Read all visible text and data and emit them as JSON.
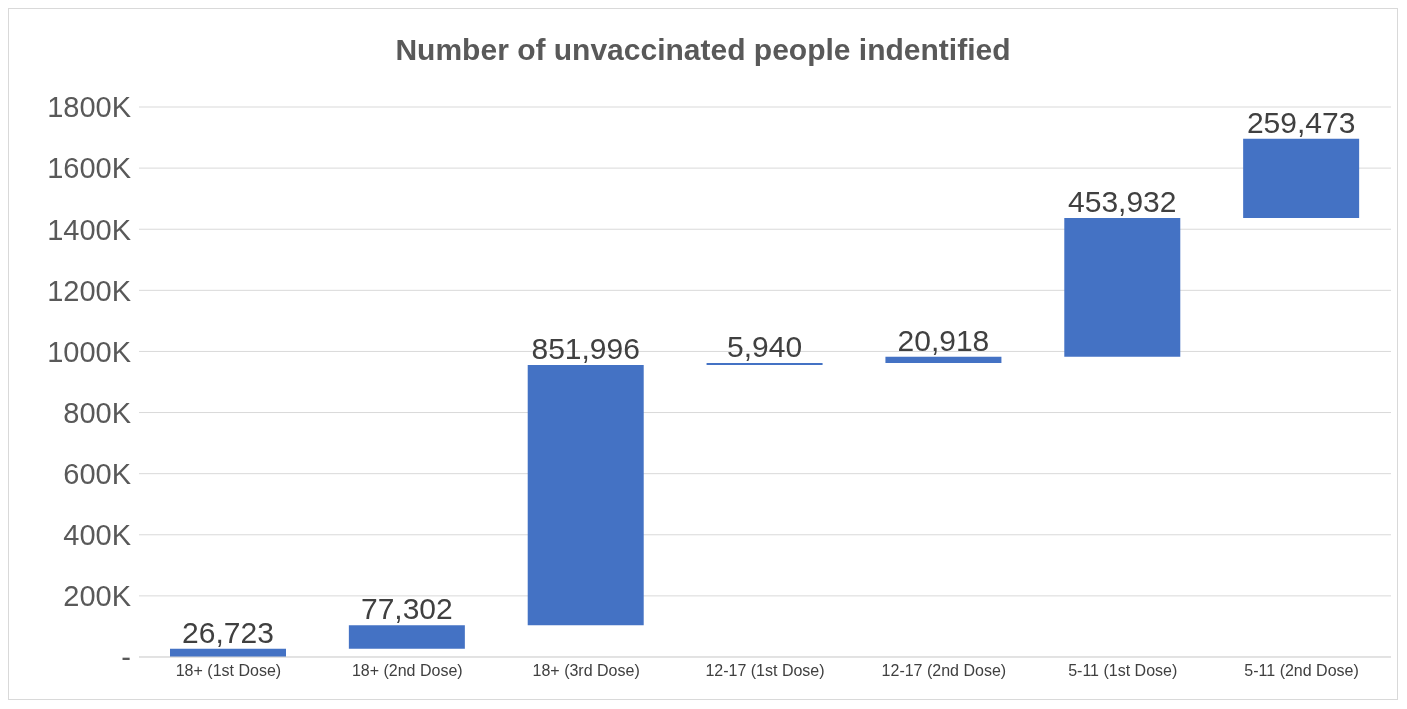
{
  "chart_data": {
    "type": "bar",
    "title": "Number of unvaccinated people indentified",
    "categories": [
      "18+ (1st Dose)",
      "18+ (2nd Dose)",
      "18+ (3rd Dose)",
      "12-17 (1st Dose)",
      "12-17 (2nd Dose)",
      "5-11 (1st Dose)",
      "5-11 (2nd Dose)"
    ],
    "values": [
      26723,
      77302,
      851996,
      5940,
      20918,
      453932,
      259473
    ],
    "base": [
      0,
      26723,
      104025,
      956021,
      961961,
      982879,
      1436811
    ],
    "color": "#4472c4",
    "ylim": [
      0,
      1800000
    ],
    "yticks": [
      {
        "value": 0,
        "label": "-"
      },
      {
        "value": 200000,
        "label": "200K"
      },
      {
        "value": 400000,
        "label": "400K"
      },
      {
        "value": 600000,
        "label": "600K"
      },
      {
        "value": 800000,
        "label": "800K"
      },
      {
        "value": 1000000,
        "label": "1000K"
      },
      {
        "value": 1200000,
        "label": "1200K"
      },
      {
        "value": 1400000,
        "label": "1400K"
      },
      {
        "value": 1600000,
        "label": "1600K"
      },
      {
        "value": 1800000,
        "label": "1800K"
      }
    ],
    "grid": "y",
    "value_labels": [
      "26,723",
      "77,302",
      "851,996",
      "5,940",
      "20,918",
      "453,932",
      "259,473"
    ]
  }
}
